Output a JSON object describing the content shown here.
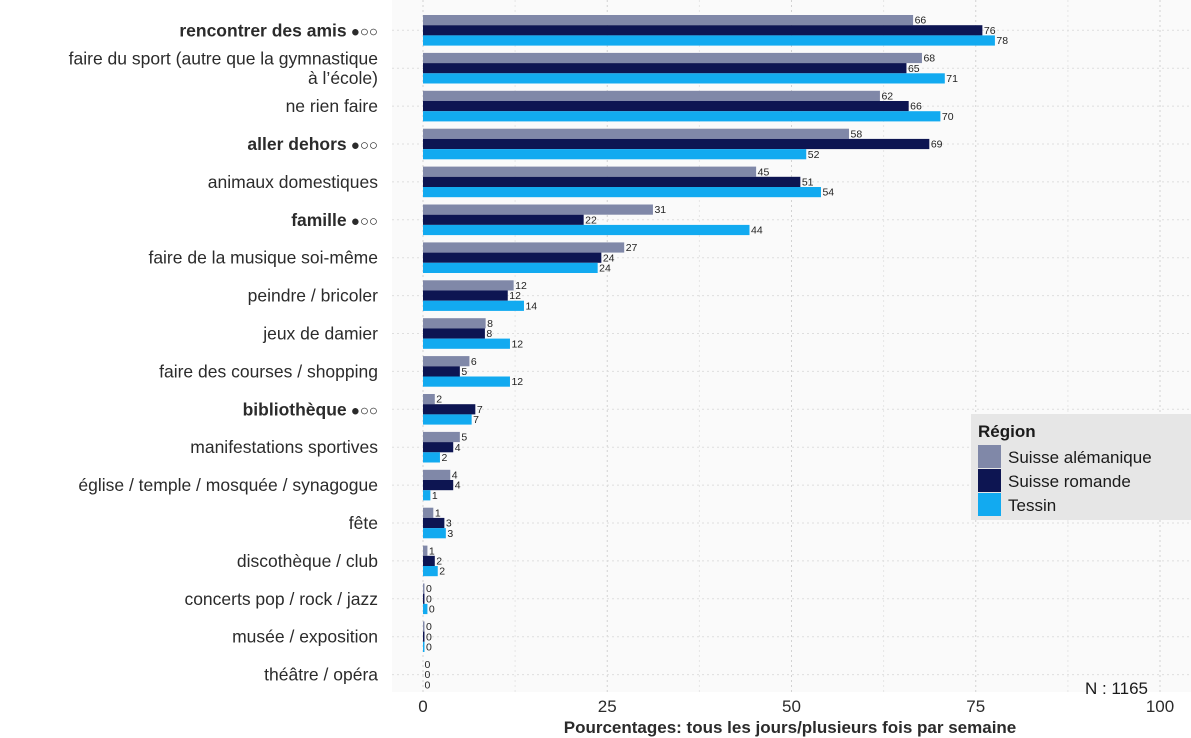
{
  "chart_data": {
    "type": "bar",
    "orientation": "horizontal",
    "xlabel": "Pourcentages: tous les jours/plusieurs fois par semaine",
    "xlim": [
      0,
      100
    ],
    "xticks": [
      0,
      25,
      50,
      75,
      100
    ],
    "grid": true,
    "legend_position": "right",
    "legend_title": "Région",
    "note": "N : 1165",
    "categories": [
      {
        "label": "rencontrer des amis",
        "marker": "●○○",
        "bold": true
      },
      {
        "label": "faire du sport (autre que la gymnastique|à l’école)",
        "marker": "",
        "bold": false
      },
      {
        "label": "ne rien faire",
        "marker": "",
        "bold": false
      },
      {
        "label": "aller dehors",
        "marker": "●○○",
        "bold": true
      },
      {
        "label": "animaux domestiques",
        "marker": "",
        "bold": false
      },
      {
        "label": "famille",
        "marker": "●○○",
        "bold": true
      },
      {
        "label": "faire de la musique soi-même",
        "marker": "",
        "bold": false
      },
      {
        "label": "peindre / bricoler",
        "marker": "",
        "bold": false
      },
      {
        "label": "jeux de damier",
        "marker": "",
        "bold": false
      },
      {
        "label": "faire des courses / shopping",
        "marker": "",
        "bold": false
      },
      {
        "label": "bibliothèque",
        "marker": "●○○",
        "bold": true
      },
      {
        "label": "manifestations sportives",
        "marker": "",
        "bold": false
      },
      {
        "label": "église / temple / mosquée / synagogue",
        "marker": "",
        "bold": false
      },
      {
        "label": "fête",
        "marker": "",
        "bold": false
      },
      {
        "label": "discothèque / club",
        "marker": "",
        "bold": false
      },
      {
        "label": "concerts pop / rock / jazz",
        "marker": "",
        "bold": false
      },
      {
        "label": "musée / exposition",
        "marker": "",
        "bold": false
      },
      {
        "label": "théâtre / opéra",
        "marker": "",
        "bold": false
      }
    ],
    "series": [
      {
        "name": "Suisse alémanique",
        "color": "#8088a8",
        "values": [
          66,
          68,
          62,
          58,
          45,
          31,
          27,
          12,
          8,
          6,
          2,
          5,
          4,
          1,
          1,
          0,
          0,
          0
        ],
        "plotted": [
          66.5,
          67.7,
          62.0,
          57.8,
          45.2,
          31.2,
          27.3,
          12.3,
          8.5,
          6.3,
          1.6,
          5.0,
          3.7,
          1.4,
          0.6,
          0.2,
          0.2,
          0.0
        ]
      },
      {
        "name": "Suisse romande",
        "color": "#0d1552",
        "values": [
          76,
          65,
          66,
          69,
          51,
          22,
          24,
          12,
          8,
          5,
          7,
          4,
          4,
          3,
          2,
          0,
          0,
          0
        ],
        "plotted": [
          75.9,
          65.6,
          65.9,
          68.7,
          51.2,
          21.8,
          24.2,
          11.5,
          8.4,
          5.0,
          7.1,
          4.1,
          4.1,
          2.9,
          1.6,
          0.2,
          0.2,
          0.0
        ]
      },
      {
        "name": "Tessin",
        "color": "#12aaf0",
        "values": [
          78,
          71,
          70,
          52,
          54,
          44,
          24,
          14,
          12,
          12,
          7,
          2,
          1,
          3,
          2,
          0,
          0,
          0
        ],
        "plotted": [
          77.6,
          70.8,
          70.2,
          52.0,
          54.0,
          44.3,
          23.7,
          13.7,
          11.8,
          11.8,
          6.6,
          2.3,
          1.0,
          3.1,
          2.0,
          0.6,
          0.2,
          0.0
        ]
      }
    ]
  }
}
